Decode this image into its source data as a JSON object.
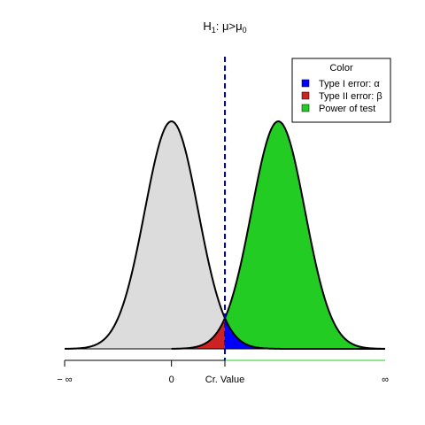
{
  "chart_data": {
    "type": "area",
    "title": {
      "h_letter": "H",
      "h_sub": "1",
      "rest": ": μ>μ",
      "mu_sub": "0"
    },
    "xlim": [
      -4,
      8
    ],
    "ylim": [
      0,
      0.4
    ],
    "null_distribution": {
      "mean": 0,
      "sd": 1
    },
    "alt_distribution": {
      "mean": 4,
      "sd": 1
    },
    "critical_value": 2,
    "x_ticks": [
      {
        "value": -4,
        "label": "− ∞"
      },
      {
        "value": 0,
        "label": "0"
      },
      {
        "value": 2,
        "label": "Cr. Value"
      },
      {
        "value": 8,
        "label": "∞"
      }
    ],
    "regions": [
      {
        "key": "alpha",
        "label": "Type I error: α",
        "color": "#0000ff"
      },
      {
        "key": "beta",
        "label": "Type II error: β",
        "color": "#cc2222"
      },
      {
        "key": "power",
        "label": "Power of test",
        "color": "#22cc22"
      }
    ],
    "null_fill_color": "#dcdcdc",
    "critical_line_color": "#0000cc",
    "legend": {
      "title": "Color",
      "position": "top-right"
    },
    "grid": false
  }
}
